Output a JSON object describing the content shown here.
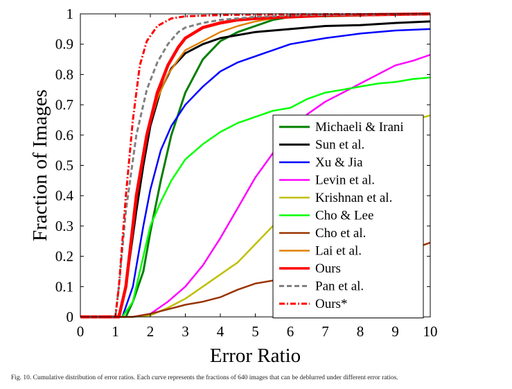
{
  "chart_data": {
    "type": "line",
    "title": "",
    "xlabel": "Error Ratio",
    "ylabel": "Fraction of Images",
    "xlim": [
      0,
      10
    ],
    "ylim": [
      0,
      1
    ],
    "xticks": [
      "0",
      "1",
      "2",
      "3",
      "4",
      "5",
      "6",
      "7",
      "8",
      "9",
      "10"
    ],
    "yticks": [
      "0",
      "0.1",
      "0.2",
      "0.3",
      "0.4",
      "0.5",
      "0.6",
      "0.7",
      "0.8",
      "0.9",
      "1"
    ],
    "grid": false,
    "legend_position": "right",
    "series": [
      {
        "name": "Michaeli & Irani",
        "color": "#007f00",
        "dash": "solid",
        "width": 3,
        "points": [
          [
            0,
            0
          ],
          [
            1.3,
            0
          ],
          [
            1.5,
            0.05
          ],
          [
            1.8,
            0.15
          ],
          [
            2.0,
            0.28
          ],
          [
            2.3,
            0.45
          ],
          [
            2.6,
            0.6
          ],
          [
            3.0,
            0.74
          ],
          [
            3.5,
            0.85
          ],
          [
            4.0,
            0.91
          ],
          [
            4.5,
            0.94
          ],
          [
            5.0,
            0.96
          ],
          [
            5.5,
            0.98
          ],
          [
            6.0,
            0.99
          ],
          [
            10,
            1.0
          ]
        ]
      },
      {
        "name": "Sun et al.",
        "color": "#000000",
        "dash": "solid",
        "width": 3,
        "points": [
          [
            0,
            0
          ],
          [
            1.1,
            0
          ],
          [
            1.3,
            0.1
          ],
          [
            1.6,
            0.35
          ],
          [
            1.8,
            0.5
          ],
          [
            2.0,
            0.63
          ],
          [
            2.3,
            0.75
          ],
          [
            2.6,
            0.82
          ],
          [
            3.0,
            0.87
          ],
          [
            3.5,
            0.9
          ],
          [
            4.0,
            0.92
          ],
          [
            5.0,
            0.94
          ],
          [
            6.0,
            0.95
          ],
          [
            7.0,
            0.96
          ],
          [
            8.0,
            0.963
          ],
          [
            9.0,
            0.97
          ],
          [
            10,
            0.975
          ]
        ]
      },
      {
        "name": "Xu & Jia",
        "color": "#0000ff",
        "dash": "solid",
        "width": 2.5,
        "points": [
          [
            0,
            0
          ],
          [
            1.2,
            0
          ],
          [
            1.5,
            0.1
          ],
          [
            1.8,
            0.3
          ],
          [
            2.0,
            0.42
          ],
          [
            2.3,
            0.55
          ],
          [
            2.6,
            0.63
          ],
          [
            3.0,
            0.7
          ],
          [
            3.5,
            0.76
          ],
          [
            4.0,
            0.81
          ],
          [
            4.5,
            0.84
          ],
          [
            5.0,
            0.86
          ],
          [
            5.5,
            0.88
          ],
          [
            6.0,
            0.9
          ],
          [
            7.0,
            0.92
          ],
          [
            8.0,
            0.935
          ],
          [
            9.0,
            0.945
          ],
          [
            10,
            0.95
          ]
        ]
      },
      {
        "name": "Levin et al.",
        "color": "#ff00ff",
        "dash": "solid",
        "width": 2.5,
        "points": [
          [
            0,
            0
          ],
          [
            1.5,
            0
          ],
          [
            2.0,
            0.01
          ],
          [
            2.5,
            0.05
          ],
          [
            3.0,
            0.1
          ],
          [
            3.5,
            0.17
          ],
          [
            4.0,
            0.26
          ],
          [
            4.5,
            0.36
          ],
          [
            5.0,
            0.46
          ],
          [
            5.5,
            0.54
          ],
          [
            6.0,
            0.62
          ],
          [
            6.5,
            0.67
          ],
          [
            7.0,
            0.71
          ],
          [
            7.5,
            0.74
          ],
          [
            8.0,
            0.77
          ],
          [
            8.5,
            0.8
          ],
          [
            9.0,
            0.83
          ],
          [
            9.5,
            0.845
          ],
          [
            10,
            0.865
          ]
        ]
      },
      {
        "name": "Krishnan et al.",
        "color": "#bfbf00",
        "dash": "solid",
        "width": 2.5,
        "points": [
          [
            0,
            0
          ],
          [
            1.5,
            0
          ],
          [
            2.0,
            0.005
          ],
          [
            2.5,
            0.03
          ],
          [
            3.0,
            0.06
          ],
          [
            3.5,
            0.1
          ],
          [
            4.0,
            0.14
          ],
          [
            4.5,
            0.18
          ],
          [
            5.0,
            0.24
          ],
          [
            5.5,
            0.3
          ],
          [
            6.0,
            0.36
          ],
          [
            6.5,
            0.42
          ],
          [
            7.0,
            0.48
          ],
          [
            7.5,
            0.54
          ],
          [
            8.0,
            0.58
          ],
          [
            8.5,
            0.61
          ],
          [
            9.0,
            0.63
          ],
          [
            9.5,
            0.65
          ],
          [
            10,
            0.665
          ]
        ]
      },
      {
        "name": "Cho & Lee",
        "color": "#00ff00",
        "dash": "solid",
        "width": 2.5,
        "points": [
          [
            0,
            0
          ],
          [
            1.2,
            0
          ],
          [
            1.5,
            0.05
          ],
          [
            1.8,
            0.2
          ],
          [
            2.0,
            0.3
          ],
          [
            2.3,
            0.38
          ],
          [
            2.6,
            0.45
          ],
          [
            3.0,
            0.52
          ],
          [
            3.5,
            0.57
          ],
          [
            4.0,
            0.61
          ],
          [
            4.5,
            0.64
          ],
          [
            5.0,
            0.66
          ],
          [
            5.5,
            0.68
          ],
          [
            6.0,
            0.69
          ],
          [
            6.5,
            0.72
          ],
          [
            7.0,
            0.74
          ],
          [
            7.5,
            0.75
          ],
          [
            8.0,
            0.76
          ],
          [
            8.5,
            0.77
          ],
          [
            9.0,
            0.775
          ],
          [
            9.5,
            0.785
          ],
          [
            10,
            0.79
          ]
        ]
      },
      {
        "name": "Cho et al.",
        "color": "#993300",
        "dash": "solid",
        "width": 2.5,
        "points": [
          [
            0,
            0
          ],
          [
            1.5,
            0
          ],
          [
            2.0,
            0.01
          ],
          [
            2.5,
            0.025
          ],
          [
            3.0,
            0.04
          ],
          [
            3.5,
            0.05
          ],
          [
            4.0,
            0.065
          ],
          [
            4.5,
            0.09
          ],
          [
            5.0,
            0.11
          ],
          [
            5.5,
            0.12
          ],
          [
            6.0,
            0.13
          ],
          [
            6.5,
            0.135
          ],
          [
            7.0,
            0.14
          ],
          [
            7.5,
            0.15
          ],
          [
            8.0,
            0.165
          ],
          [
            8.5,
            0.18
          ],
          [
            9.0,
            0.2
          ],
          [
            9.5,
            0.225
          ],
          [
            10,
            0.245
          ]
        ]
      },
      {
        "name": "Lai et al.",
        "color": "#e08000",
        "dash": "solid",
        "width": 2.5,
        "points": [
          [
            0,
            0
          ],
          [
            1.1,
            0
          ],
          [
            1.3,
            0.1
          ],
          [
            1.6,
            0.4
          ],
          [
            1.9,
            0.6
          ],
          [
            2.2,
            0.72
          ],
          [
            2.5,
            0.8
          ],
          [
            2.8,
            0.85
          ],
          [
            3.0,
            0.88
          ],
          [
            3.5,
            0.91
          ],
          [
            4.0,
            0.94
          ],
          [
            4.5,
            0.96
          ],
          [
            5.0,
            0.975
          ],
          [
            5.5,
            0.985
          ],
          [
            6.0,
            0.99
          ],
          [
            7.0,
            0.995
          ],
          [
            10,
            1.0
          ]
        ]
      },
      {
        "name": "Ours",
        "color": "#ff0000",
        "dash": "solid",
        "width": 4.5,
        "points": [
          [
            0,
            0
          ],
          [
            1.1,
            0
          ],
          [
            1.3,
            0.1
          ],
          [
            1.6,
            0.4
          ],
          [
            1.9,
            0.6
          ],
          [
            2.2,
            0.74
          ],
          [
            2.5,
            0.83
          ],
          [
            2.8,
            0.89
          ],
          [
            3.0,
            0.92
          ],
          [
            3.5,
            0.955
          ],
          [
            4.0,
            0.97
          ],
          [
            4.5,
            0.98
          ],
          [
            5.0,
            0.985
          ],
          [
            6.0,
            0.99
          ],
          [
            7.0,
            0.995
          ],
          [
            10,
            1.0
          ]
        ]
      },
      {
        "name": "Pan et al.",
        "color": "#808080",
        "dash": "dashed",
        "width": 3,
        "points": [
          [
            0,
            0
          ],
          [
            1.0,
            0
          ],
          [
            1.1,
            0.1
          ],
          [
            1.3,
            0.35
          ],
          [
            1.6,
            0.6
          ],
          [
            1.9,
            0.75
          ],
          [
            2.2,
            0.84
          ],
          [
            2.5,
            0.9
          ],
          [
            2.8,
            0.94
          ],
          [
            3.0,
            0.955
          ],
          [
            3.5,
            0.97
          ],
          [
            4.0,
            0.98
          ],
          [
            5.0,
            0.99
          ],
          [
            6.0,
            0.995
          ],
          [
            10,
            1.0
          ]
        ]
      },
      {
        "name": "Ours*",
        "color": "#ff0000",
        "dash": "dashdot",
        "width": 3,
        "points": [
          [
            0,
            0
          ],
          [
            1.0,
            0
          ],
          [
            1.1,
            0.1
          ],
          [
            1.3,
            0.4
          ],
          [
            1.5,
            0.65
          ],
          [
            1.7,
            0.83
          ],
          [
            1.9,
            0.91
          ],
          [
            2.2,
            0.96
          ],
          [
            2.6,
            0.985
          ],
          [
            3.0,
            0.992
          ],
          [
            4.0,
            0.996
          ],
          [
            5.0,
            0.998
          ],
          [
            10,
            1.0
          ]
        ]
      }
    ]
  },
  "caption": "Fig. 10.  Cumulative distribution of error ratios. Each curve represents the fractions of 640 images that can be deblurred under different error ratios."
}
